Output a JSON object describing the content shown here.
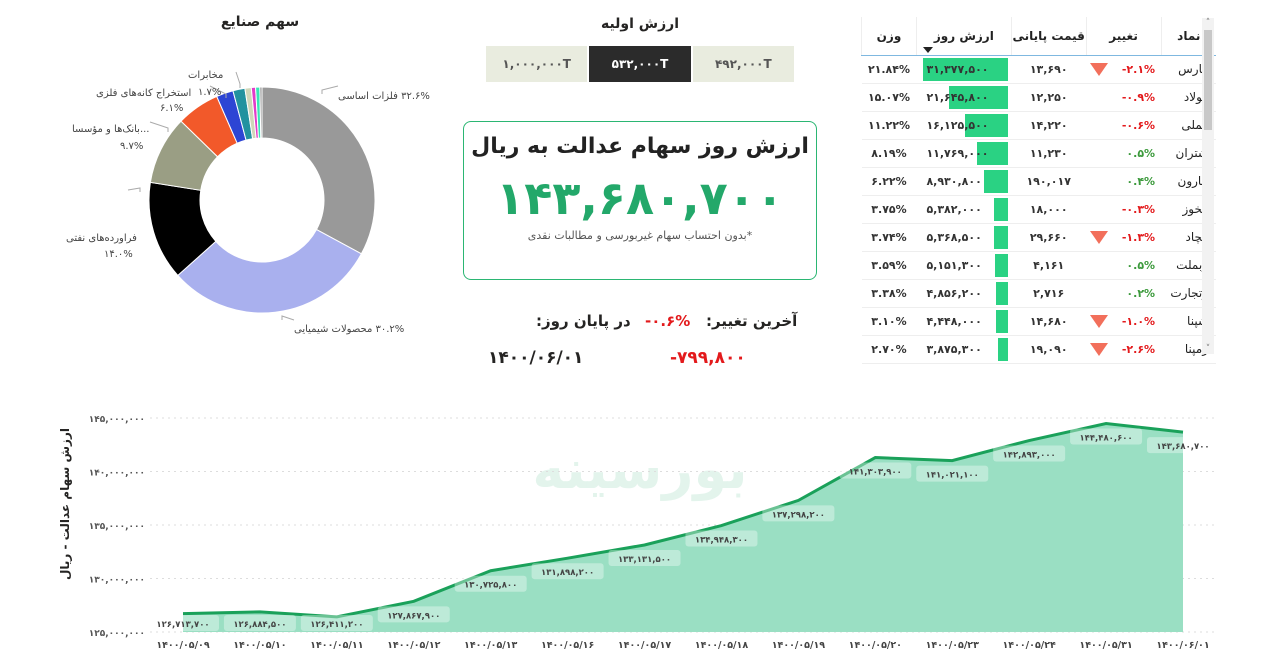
{
  "pie": {
    "title": "سهم صنایع",
    "labels": {
      "felezat": "۳۲.۶% فلزات اساسی",
      "shimiyaei": "۳۰.۲% محصولات شیمیایی",
      "naft_name": "فراورده‌های نفتی",
      "naft_pct": "۱۴.۰%",
      "bank_name": "...بانک‌ها و مؤسسا",
      "bank_pct": "۹.۷%",
      "estekhraj_name": "استخراج کانه‌های فلزی",
      "estekhraj_pct": "۶.۱%",
      "mokhaberat_name": "مخابرات",
      "mokhaberat_pct": "۱.۷%"
    }
  },
  "chart_data": [
    {
      "type": "pie",
      "title": "سهم صنایع",
      "variant": "donut",
      "slices": [
        {
          "name": "فلزات اساسی",
          "value": 32.6,
          "color": "#999999"
        },
        {
          "name": "محصولات شیمیایی",
          "value": 30.2,
          "color": "#a9b0ee"
        },
        {
          "name": "فراورده‌های نفتی",
          "value": 14.0,
          "color": "#000000"
        },
        {
          "name": "بانک‌ها و مؤسسات اعتباری",
          "value": 9.7,
          "color": "#9a9e84"
        },
        {
          "name": "استخراج کانه‌های فلزی",
          "value": 6.1,
          "color": "#f2592a"
        },
        {
          "name": "other-blue",
          "value": 2.4,
          "color": "#2d45d4"
        },
        {
          "name": "مخابرات",
          "value": 1.7,
          "color": "#22929f"
        },
        {
          "name": "other-beige",
          "value": 0.9,
          "color": "#cfd6b9"
        },
        {
          "name": "other-magenta",
          "value": 0.6,
          "color": "#e23bc9"
        },
        {
          "name": "other-mint",
          "value": 0.6,
          "color": "#37e6b5"
        },
        {
          "name": "other-gray",
          "value": 0.3,
          "color": "#8a8a8a"
        }
      ]
    },
    {
      "type": "area",
      "title": "",
      "xlabel": "",
      "ylabel": "ارزش سهام عدالت - ریال",
      "ylim": [
        125000000,
        145000000
      ],
      "yticks": [
        "۱۲۵,۰۰۰,۰۰۰",
        "۱۳۰,۰۰۰,۰۰۰",
        "۱۳۵,۰۰۰,۰۰۰",
        "۱۴۰,۰۰۰,۰۰۰",
        "۱۴۵,۰۰۰,۰۰۰"
      ],
      "grid": true,
      "categories": [
        "۱۴۰۰/۰۵/۰۹",
        "۱۴۰۰/۰۵/۱۰",
        "۱۴۰۰/۰۵/۱۱",
        "۱۴۰۰/۰۵/۱۲",
        "۱۴۰۰/۰۵/۱۳",
        "۱۴۰۰/۰۵/۱۶",
        "۱۴۰۰/۰۵/۱۷",
        "۱۴۰۰/۰۵/۱۸",
        "۱۴۰۰/۰۵/۱۹",
        "۱۴۰۰/۰۵/۲۰",
        "۱۴۰۰/۰۵/۲۳",
        "۱۴۰۰/۰۵/۲۴",
        "۱۴۰۰/۰۵/۳۱",
        "۱۴۰۰/۰۶/۰۱"
      ],
      "values": [
        126713700,
        126884500,
        126411200,
        127867900,
        130725800,
        131898200,
        133131500,
        134948300,
        137298200,
        141303900,
        141021100,
        142893000,
        144480600,
        143680700
      ],
      "value_labels": [
        "۱۲۶,۷۱۳,۷۰۰",
        "۱۲۶,۸۸۴,۵۰۰",
        "۱۲۶,۴۱۱,۲۰۰",
        "۱۲۷,۸۶۷,۹۰۰",
        "۱۳۰,۷۲۵,۸۰۰",
        "۱۳۱,۸۹۸,۲۰۰",
        "۱۳۳,۱۳۱,۵۰۰",
        "۱۳۴,۹۴۸,۳۰۰",
        "۱۳۷,۲۹۸,۲۰۰",
        "۱۴۱,۳۰۳,۹۰۰",
        "۱۴۱,۰۲۱,۱۰۰",
        "۱۴۲,۸۹۳,۰۰۰",
        "۱۴۴,۴۸۰,۶۰۰",
        "۱۴۳,۶۸۰,۷۰۰"
      ],
      "line_color": "#1aa15a",
      "fill_color": "#9adfc3"
    }
  ],
  "initial_value": {
    "title": "ارزش اولیه",
    "options": [
      "۱,۰۰۰,۰۰۰T",
      "۵۳۲,۰۰۰T",
      "۴۹۲,۰۰۰T"
    ],
    "selected_index": 1
  },
  "card": {
    "title": "ارزش روز سهام عدالت به ریال",
    "value": "۱۴۳,۶۸۰,۷۰۰",
    "note": "*بدون احتساب سهام غیربورسی و مطالبات نقدی"
  },
  "last_change": {
    "label": "آخرین تغییر:",
    "percent": "-۰.۶%",
    "amount": "-۷۹۹,۸۰۰",
    "end_of_day_label": "در پایان روز:",
    "date": "۱۴۰۰/۰۶/۰۱"
  },
  "table": {
    "headers": {
      "symbol": "نماد",
      "change": "تغییر",
      "final_price": "قیمت پایانی",
      "day_value": "ارزش روز",
      "weight": "وزن"
    },
    "rows": [
      {
        "symbol": "فارس",
        "change": "-۲.۱%",
        "dir": "neg",
        "arrow": true,
        "price": "۱۳,۶۹۰",
        "value": "۳۱,۳۷۷,۵۰۰",
        "bar": 100,
        "weight": "۲۱.۸۴%"
      },
      {
        "symbol": "فولاد",
        "change": "-۰.۹%",
        "dir": "neg",
        "arrow": false,
        "price": "۱۲,۲۵۰",
        "value": "۲۱,۶۴۵,۸۰۰",
        "bar": 69,
        "weight": "۱۵.۰۷%"
      },
      {
        "symbol": "فملی",
        "change": "-۰.۶%",
        "dir": "neg",
        "arrow": false,
        "price": "۱۴,۲۲۰",
        "value": "۱۶,۱۲۵,۵۰۰",
        "bar": 51,
        "weight": "۱۱.۲۲%"
      },
      {
        "symbol": "شتران",
        "change": "۰.۵%",
        "dir": "pos",
        "arrow": false,
        "price": "۱۱,۲۳۰",
        "value": "۱۱,۷۶۹,۰۰۰",
        "bar": 37,
        "weight": "۸.۱۹%"
      },
      {
        "symbol": "مارون",
        "change": "۰.۴%",
        "dir": "pos",
        "arrow": false,
        "price": "۱۹۰,۰۱۷",
        "value": "۸,۹۳۰,۸۰۰",
        "bar": 28,
        "weight": "۶.۲۲%"
      },
      {
        "symbol": "فخوز",
        "change": "-۰.۳%",
        "dir": "neg",
        "arrow": false,
        "price": "۱۸,۰۰۰",
        "value": "۵,۳۸۲,۰۰۰",
        "bar": 17,
        "weight": "۳.۷۵%"
      },
      {
        "symbol": "کچاد",
        "change": "-۱.۳%",
        "dir": "neg",
        "arrow": true,
        "price": "۲۹,۶۶۰",
        "value": "۵,۳۶۸,۵۰۰",
        "bar": 17,
        "weight": "۳.۷۴%"
      },
      {
        "symbol": "وبملت",
        "change": "۰.۵%",
        "dir": "pos",
        "arrow": false,
        "price": "۴,۱۶۱",
        "value": "۵,۱۵۱,۳۰۰",
        "bar": 16,
        "weight": "۳.۵۹%"
      },
      {
        "symbol": "وتجارت",
        "change": "۰.۲%",
        "dir": "pos",
        "arrow": false,
        "price": "۲,۷۱۶",
        "value": "۴,۸۵۶,۲۰۰",
        "bar": 15,
        "weight": "۳.۳۸%"
      },
      {
        "symbol": "شپنا",
        "change": "-۱.۰%",
        "dir": "neg",
        "arrow": true,
        "price": "۱۴,۶۸۰",
        "value": "۴,۴۴۸,۰۰۰",
        "bar": 14,
        "weight": "۳.۱۰%"
      },
      {
        "symbol": "رمپنا",
        "change": "-۲.۶%",
        "dir": "neg",
        "arrow": true,
        "price": "۱۹,۰۹۰",
        "value": "۳,۸۷۵,۳۰۰",
        "bar": 12,
        "weight": "۲.۷۰%"
      }
    ]
  },
  "watermark": "بورسینه",
  "colors": {
    "accent_green": "#23a86a",
    "negative_red": "#e31a1c",
    "positive_green": "#3c9a3c",
    "bar_green": "#2ad283",
    "down_arrow": "#f26f5b"
  }
}
